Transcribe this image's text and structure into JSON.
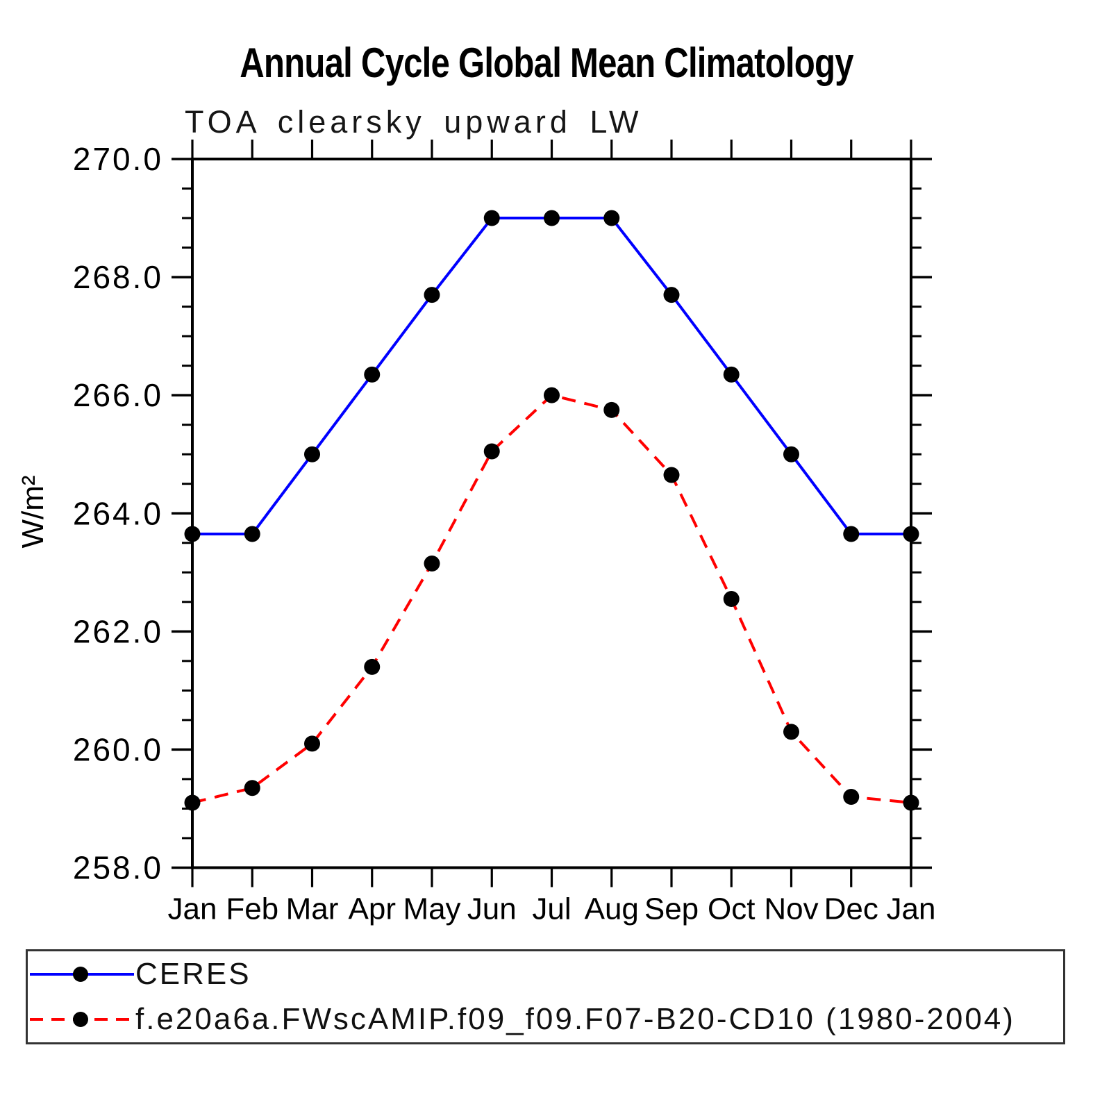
{
  "page": {
    "background": "#ffffff"
  },
  "chart_data": {
    "type": "line",
    "title": "Annual Cycle Global Mean Climatology",
    "subtitle": "TOA clearsky upward LW",
    "ylabel": "W/m²",
    "xlabel": "",
    "categories": [
      "Jan",
      "Feb",
      "Mar",
      "Apr",
      "May",
      "Jun",
      "Jul",
      "Aug",
      "Sep",
      "Oct",
      "Nov",
      "Dec",
      "Jan"
    ],
    "ylim": [
      258.0,
      270.0
    ],
    "ytick_interval": 2.0,
    "ytick_minor_interval": 0.5,
    "ytick_labels": [
      "258.0",
      "260.0",
      "262.0",
      "264.0",
      "266.0",
      "268.0",
      "270.0"
    ],
    "grid": false,
    "legend_position": "bottom",
    "axis_color": "#000000",
    "series": [
      {
        "name": "CERES",
        "color": "#0000ff",
        "style": "solid",
        "marker": "circle",
        "marker_color": "#000000",
        "values": [
          263.65,
          263.65,
          265.0,
          266.35,
          267.7,
          269.0,
          269.0,
          269.0,
          267.7,
          266.35,
          265.0,
          263.65,
          263.65
        ]
      },
      {
        "name": "f.e20a6a.FWscAMIP.f09_f09.F07-B20-CD10 (1980-2004)",
        "color": "#ff0000",
        "style": "dashed",
        "marker": "circle",
        "marker_color": "#000000",
        "values": [
          259.1,
          259.35,
          260.1,
          261.4,
          263.15,
          265.05,
          266.0,
          265.75,
          264.65,
          262.55,
          260.3,
          259.2,
          259.1
        ]
      }
    ]
  }
}
